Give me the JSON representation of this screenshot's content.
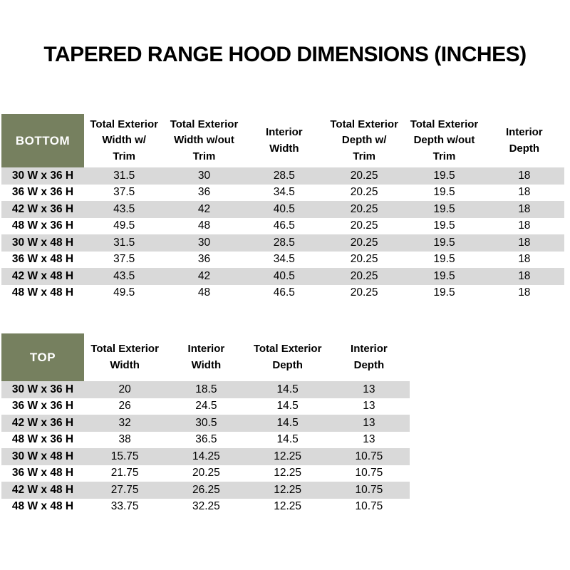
{
  "title": "TAPERED RANGE HOOD DIMENSIONS (INCHES)",
  "colors": {
    "header_cell_bg": "#76805F",
    "header_cell_text": "#FFFFFF",
    "stripe": "#D9D9D9",
    "body_text": "#000000"
  },
  "bottom_table": {
    "corner_label": "BOTTOM",
    "columns": [
      "Total Exterior\nWidth w/\nTrim",
      "Total Exterior\nWidth w/out\nTrim",
      "Interior\nWidth",
      "Total Exterior\nDepth w/\nTrim",
      "Total Exterior\nDepth w/out\nTrim",
      "Interior\nDepth"
    ],
    "rows": [
      {
        "label": "30 W x 36 H",
        "values": [
          "31.5",
          "30",
          "28.5",
          "20.25",
          "19.5",
          "18"
        ]
      },
      {
        "label": "36 W x 36 H",
        "values": [
          "37.5",
          "36",
          "34.5",
          "20.25",
          "19.5",
          "18"
        ]
      },
      {
        "label": "42 W x 36 H",
        "values": [
          "43.5",
          "42",
          "40.5",
          "20.25",
          "19.5",
          "18"
        ]
      },
      {
        "label": "48 W x 36 H",
        "values": [
          "49.5",
          "48",
          "46.5",
          "20.25",
          "19.5",
          "18"
        ]
      },
      {
        "label": "30 W x 48 H",
        "values": [
          "31.5",
          "30",
          "28.5",
          "20.25",
          "19.5",
          "18"
        ]
      },
      {
        "label": "36 W x 48 H",
        "values": [
          "37.5",
          "36",
          "34.5",
          "20.25",
          "19.5",
          "18"
        ]
      },
      {
        "label": "42 W x 48 H",
        "values": [
          "43.5",
          "42",
          "40.5",
          "20.25",
          "19.5",
          "18"
        ]
      },
      {
        "label": "48 W x 48 H",
        "values": [
          "49.5",
          "48",
          "46.5",
          "20.25",
          "19.5",
          "18"
        ]
      }
    ]
  },
  "top_table": {
    "corner_label": "TOP",
    "columns": [
      "Total Exterior\nWidth",
      "Interior\nWidth",
      "Total Exterior\nDepth",
      "Interior\nDepth"
    ],
    "rows": [
      {
        "label": "30 W x 36 H",
        "values": [
          "20",
          "18.5",
          "14.5",
          "13"
        ]
      },
      {
        "label": "36 W x 36 H",
        "values": [
          "26",
          "24.5",
          "14.5",
          "13"
        ]
      },
      {
        "label": "42 W x 36 H",
        "values": [
          "32",
          "30.5",
          "14.5",
          "13"
        ]
      },
      {
        "label": "48 W x 36 H",
        "values": [
          "38",
          "36.5",
          "14.5",
          "13"
        ]
      },
      {
        "label": "30 W x 48 H",
        "values": [
          "15.75",
          "14.25",
          "12.25",
          "10.75"
        ]
      },
      {
        "label": "36 W x 48 H",
        "values": [
          "21.75",
          "20.25",
          "12.25",
          "10.75"
        ]
      },
      {
        "label": "42 W x 48 H",
        "values": [
          "27.75",
          "26.25",
          "12.25",
          "10.75"
        ]
      },
      {
        "label": "48 W x 48 H",
        "values": [
          "33.75",
          "32.25",
          "12.25",
          "10.75"
        ]
      }
    ]
  }
}
